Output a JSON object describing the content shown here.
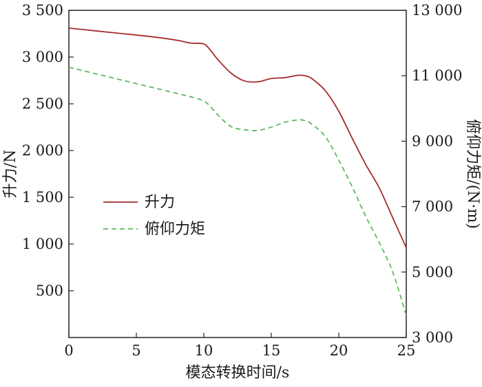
{
  "chart_data": {
    "type": "line",
    "title": "",
    "xlabel": "模态转换时间/s",
    "ylabel_left": "升力/N",
    "ylabel_right": "俯仰力矩/(N·m)",
    "xlim": [
      0,
      25
    ],
    "ylim_left": [
      0,
      3500
    ],
    "ylim_right": [
      3000,
      13000
    ],
    "x_ticks": [
      0,
      5,
      10,
      15,
      20,
      25
    ],
    "x_tick_labels": [
      "0",
      "5",
      "10",
      "15",
      "20",
      "25"
    ],
    "y_left_ticks": [
      500,
      1000,
      1500,
      2000,
      2500,
      3000,
      3500
    ],
    "y_left_tick_labels": [
      "500",
      "1 000",
      "1 500",
      "2 000",
      "2 500",
      "3 000",
      "3 500"
    ],
    "y_right_ticks": [
      3000,
      5000,
      7000,
      9000,
      11000,
      13000
    ],
    "y_right_tick_labels": [
      "3 000",
      "5 000",
      "7 000",
      "9 000",
      "11 000",
      "13 000"
    ],
    "grid": false,
    "legend_position": "center-left",
    "series": [
      {
        "name": "升力",
        "axis": "left",
        "color": "#a52a2a",
        "dash": "solid",
        "x": [
          0,
          2,
          4,
          6,
          8,
          9,
          10,
          10.5,
          11,
          12,
          13,
          14,
          15,
          16,
          17,
          17.5,
          18,
          19,
          20,
          21,
          22,
          23,
          24,
          25
        ],
        "y": [
          3310,
          3280,
          3250,
          3220,
          3180,
          3150,
          3140,
          3070,
          2980,
          2830,
          2745,
          2735,
          2770,
          2780,
          2805,
          2800,
          2770,
          2640,
          2420,
          2130,
          1850,
          1600,
          1280,
          960
        ]
      },
      {
        "name": "俯仰力矩",
        "axis": "right",
        "color": "#5cb85c",
        "dash": "dashed",
        "x": [
          0,
          2,
          4,
          6,
          8,
          9,
          10,
          10.5,
          11,
          12,
          13,
          14,
          15,
          16,
          17,
          17.5,
          18,
          19,
          20,
          21,
          22,
          23,
          24,
          25
        ],
        "y": [
          11260,
          11060,
          10860,
          10660,
          10460,
          10360,
          10230,
          10050,
          9820,
          9450,
          9350,
          9330,
          9430,
          9580,
          9650,
          9630,
          9520,
          9140,
          8420,
          7600,
          6700,
          5900,
          5000,
          3670
        ]
      }
    ]
  }
}
